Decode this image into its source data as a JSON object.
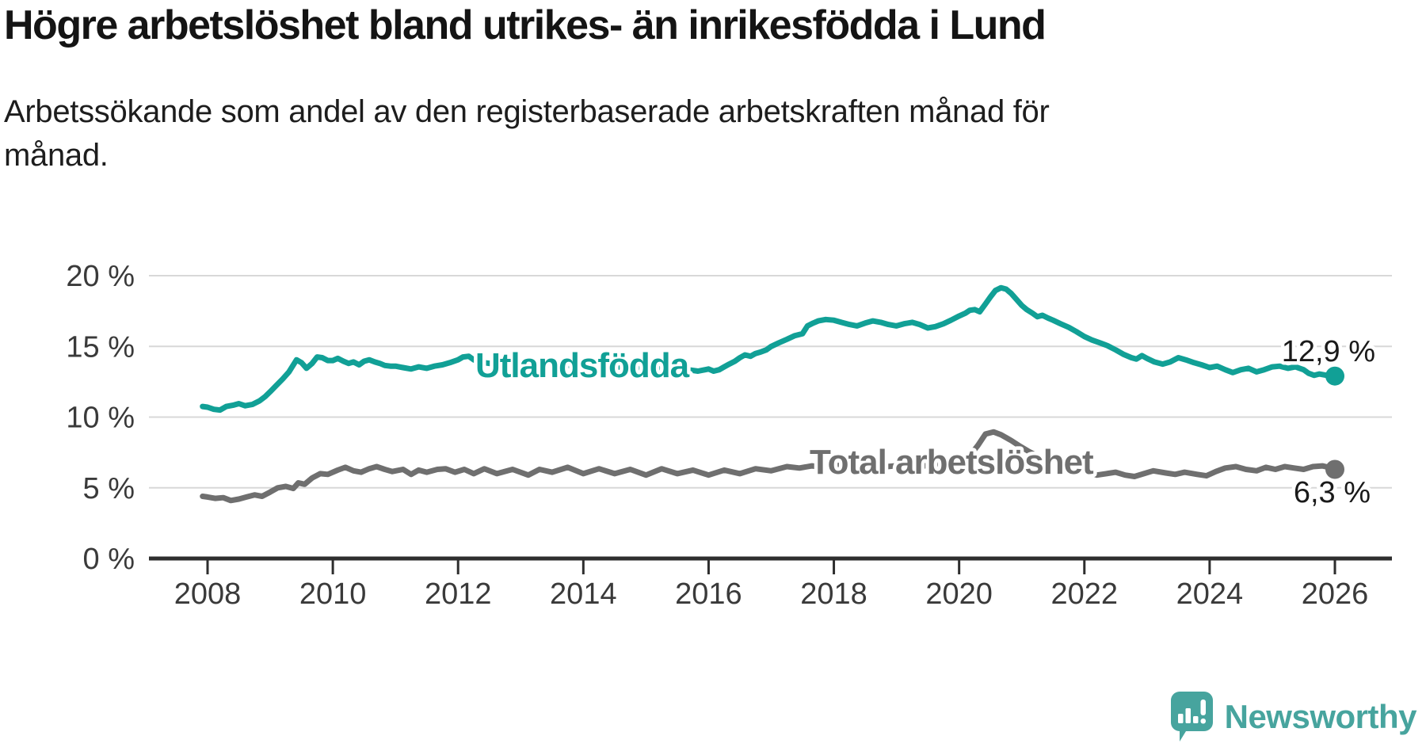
{
  "chart_data": {
    "type": "line",
    "title": "Högre arbetslöshet bland utrikes- än inrikesfödda i Lund",
    "subtitle": "Arbetssökande som andel av den registerbaserade arbetskraften månad för månad.",
    "unit": "%",
    "grid": true,
    "legend": "inline-labels",
    "x_axis": {
      "tick_values": [
        2008,
        2010,
        2012,
        2014,
        2016,
        2018,
        2020,
        2022,
        2024,
        2026
      ],
      "tick_labels": [
        "2008",
        "2010",
        "2012",
        "2014",
        "2016",
        "2018",
        "2020",
        "2022",
        "2024",
        "2026"
      ],
      "range": [
        2007.1,
        2026.9
      ]
    },
    "y_axis": {
      "tick_values": [
        0,
        5,
        10,
        15,
        20
      ],
      "tick_labels": [
        "0 %",
        "5 %",
        "10 %",
        "15 %",
        "20 %"
      ],
      "range": [
        0,
        21
      ]
    },
    "series": [
      {
        "id": "utlandsfodda",
        "name": "Utlandsfödda",
        "color": "#11A096",
        "end_label": "12,9 %",
        "end_value": 12.9,
        "points": [
          [
            2007.92,
            10.75
          ],
          [
            2008.0,
            10.7
          ],
          [
            2008.1,
            10.55
          ],
          [
            2008.2,
            10.5
          ],
          [
            2008.3,
            10.75
          ],
          [
            2008.42,
            10.85
          ],
          [
            2008.5,
            10.95
          ],
          [
            2008.6,
            10.8
          ],
          [
            2008.72,
            10.9
          ],
          [
            2008.83,
            11.15
          ],
          [
            2008.92,
            11.45
          ],
          [
            2009.0,
            11.8
          ],
          [
            2009.1,
            12.25
          ],
          [
            2009.2,
            12.7
          ],
          [
            2009.3,
            13.2
          ],
          [
            2009.42,
            14.05
          ],
          [
            2009.5,
            13.85
          ],
          [
            2009.58,
            13.45
          ],
          [
            2009.67,
            13.8
          ],
          [
            2009.75,
            14.25
          ],
          [
            2009.83,
            14.2
          ],
          [
            2009.92,
            14.0
          ],
          [
            2010.0,
            14.0
          ],
          [
            2010.08,
            14.15
          ],
          [
            2010.17,
            13.95
          ],
          [
            2010.25,
            13.8
          ],
          [
            2010.33,
            13.9
          ],
          [
            2010.42,
            13.7
          ],
          [
            2010.5,
            13.95
          ],
          [
            2010.58,
            14.05
          ],
          [
            2010.67,
            13.9
          ],
          [
            2010.75,
            13.8
          ],
          [
            2010.83,
            13.65
          ],
          [
            2010.92,
            13.6
          ],
          [
            2011.0,
            13.6
          ],
          [
            2011.12,
            13.5
          ],
          [
            2011.25,
            13.4
          ],
          [
            2011.37,
            13.55
          ],
          [
            2011.5,
            13.45
          ],
          [
            2011.62,
            13.6
          ],
          [
            2011.75,
            13.7
          ],
          [
            2011.87,
            13.85
          ],
          [
            2012.0,
            14.05
          ],
          [
            2012.08,
            14.25
          ],
          [
            2012.17,
            14.3
          ],
          [
            2012.25,
            14.05
          ],
          [
            2012.33,
            13.9
          ],
          [
            2012.5,
            13.8
          ],
          [
            2012.67,
            13.95
          ],
          [
            2012.83,
            13.85
          ],
          [
            2013.0,
            13.9
          ],
          [
            2013.17,
            13.75
          ],
          [
            2013.33,
            13.85
          ],
          [
            2013.5,
            13.65
          ],
          [
            2013.67,
            13.75
          ],
          [
            2013.83,
            13.6
          ],
          [
            2014.0,
            13.65
          ],
          [
            2014.17,
            13.55
          ],
          [
            2014.33,
            13.6
          ],
          [
            2014.5,
            13.5
          ],
          [
            2014.67,
            13.6
          ],
          [
            2014.83,
            13.45
          ],
          [
            2015.0,
            13.5
          ],
          [
            2015.17,
            13.4
          ],
          [
            2015.33,
            13.45
          ],
          [
            2015.5,
            13.55
          ],
          [
            2015.67,
            13.35
          ],
          [
            2015.83,
            13.25
          ],
          [
            2016.0,
            13.4
          ],
          [
            2016.08,
            13.25
          ],
          [
            2016.17,
            13.35
          ],
          [
            2016.25,
            13.55
          ],
          [
            2016.33,
            13.75
          ],
          [
            2016.42,
            13.95
          ],
          [
            2016.5,
            14.2
          ],
          [
            2016.58,
            14.4
          ],
          [
            2016.67,
            14.3
          ],
          [
            2016.75,
            14.5
          ],
          [
            2016.83,
            14.6
          ],
          [
            2016.92,
            14.75
          ],
          [
            2017.0,
            15.0
          ],
          [
            2017.12,
            15.25
          ],
          [
            2017.25,
            15.5
          ],
          [
            2017.37,
            15.75
          ],
          [
            2017.5,
            15.9
          ],
          [
            2017.58,
            16.45
          ],
          [
            2017.67,
            16.65
          ],
          [
            2017.75,
            16.8
          ],
          [
            2017.87,
            16.9
          ],
          [
            2018.0,
            16.85
          ],
          [
            2018.12,
            16.7
          ],
          [
            2018.25,
            16.55
          ],
          [
            2018.37,
            16.45
          ],
          [
            2018.5,
            16.65
          ],
          [
            2018.62,
            16.8
          ],
          [
            2018.75,
            16.7
          ],
          [
            2018.87,
            16.55
          ],
          [
            2019.0,
            16.45
          ],
          [
            2019.12,
            16.6
          ],
          [
            2019.25,
            16.7
          ],
          [
            2019.37,
            16.55
          ],
          [
            2019.5,
            16.3
          ],
          [
            2019.62,
            16.4
          ],
          [
            2019.75,
            16.6
          ],
          [
            2019.87,
            16.85
          ],
          [
            2020.0,
            17.15
          ],
          [
            2020.1,
            17.35
          ],
          [
            2020.17,
            17.55
          ],
          [
            2020.25,
            17.6
          ],
          [
            2020.33,
            17.45
          ],
          [
            2020.42,
            18.0
          ],
          [
            2020.5,
            18.5
          ],
          [
            2020.58,
            18.95
          ],
          [
            2020.67,
            19.15
          ],
          [
            2020.75,
            19.05
          ],
          [
            2020.83,
            18.75
          ],
          [
            2020.92,
            18.3
          ],
          [
            2021.0,
            17.9
          ],
          [
            2021.08,
            17.6
          ],
          [
            2021.17,
            17.35
          ],
          [
            2021.25,
            17.1
          ],
          [
            2021.33,
            17.2
          ],
          [
            2021.42,
            17.0
          ],
          [
            2021.5,
            16.85
          ],
          [
            2021.62,
            16.6
          ],
          [
            2021.75,
            16.35
          ],
          [
            2021.87,
            16.05
          ],
          [
            2022.0,
            15.7
          ],
          [
            2022.12,
            15.45
          ],
          [
            2022.25,
            15.25
          ],
          [
            2022.37,
            15.05
          ],
          [
            2022.5,
            14.75
          ],
          [
            2022.62,
            14.45
          ],
          [
            2022.75,
            14.2
          ],
          [
            2022.83,
            14.1
          ],
          [
            2022.92,
            14.35
          ],
          [
            2023.0,
            14.15
          ],
          [
            2023.12,
            13.9
          ],
          [
            2023.25,
            13.75
          ],
          [
            2023.37,
            13.9
          ],
          [
            2023.5,
            14.2
          ],
          [
            2023.62,
            14.05
          ],
          [
            2023.75,
            13.85
          ],
          [
            2023.87,
            13.7
          ],
          [
            2024.0,
            13.5
          ],
          [
            2024.12,
            13.6
          ],
          [
            2024.25,
            13.35
          ],
          [
            2024.37,
            13.15
          ],
          [
            2024.5,
            13.35
          ],
          [
            2024.62,
            13.45
          ],
          [
            2024.75,
            13.2
          ],
          [
            2024.87,
            13.35
          ],
          [
            2025.0,
            13.55
          ],
          [
            2025.12,
            13.6
          ],
          [
            2025.25,
            13.45
          ],
          [
            2025.37,
            13.55
          ],
          [
            2025.5,
            13.35
          ],
          [
            2025.58,
            13.1
          ],
          [
            2025.67,
            12.95
          ],
          [
            2025.75,
            13.05
          ],
          [
            2025.87,
            12.95
          ],
          [
            2026.0,
            12.9
          ]
        ]
      },
      {
        "id": "total",
        "name": "Total arbetslöshet",
        "color": "#6F6F6F",
        "end_label": "6,3 %",
        "end_value": 6.3,
        "points": [
          [
            2007.92,
            4.4
          ],
          [
            2008.0,
            4.35
          ],
          [
            2008.12,
            4.25
          ],
          [
            2008.25,
            4.3
          ],
          [
            2008.37,
            4.1
          ],
          [
            2008.5,
            4.2
          ],
          [
            2008.62,
            4.35
          ],
          [
            2008.75,
            4.5
          ],
          [
            2008.87,
            4.4
          ],
          [
            2009.0,
            4.7
          ],
          [
            2009.12,
            5.0
          ],
          [
            2009.25,
            5.1
          ],
          [
            2009.37,
            4.95
          ],
          [
            2009.45,
            5.35
          ],
          [
            2009.55,
            5.25
          ],
          [
            2009.67,
            5.7
          ],
          [
            2009.8,
            6.0
          ],
          [
            2009.92,
            5.95
          ],
          [
            2010.08,
            6.25
          ],
          [
            2010.2,
            6.45
          ],
          [
            2010.33,
            6.2
          ],
          [
            2010.45,
            6.1
          ],
          [
            2010.58,
            6.35
          ],
          [
            2010.7,
            6.5
          ],
          [
            2010.83,
            6.3
          ],
          [
            2010.95,
            6.15
          ],
          [
            2011.12,
            6.3
          ],
          [
            2011.25,
            5.95
          ],
          [
            2011.37,
            6.25
          ],
          [
            2011.5,
            6.1
          ],
          [
            2011.67,
            6.3
          ],
          [
            2011.8,
            6.35
          ],
          [
            2011.95,
            6.1
          ],
          [
            2012.1,
            6.3
          ],
          [
            2012.25,
            6.0
          ],
          [
            2012.42,
            6.35
          ],
          [
            2012.62,
            6.0
          ],
          [
            2012.87,
            6.3
          ],
          [
            2013.12,
            5.9
          ],
          [
            2013.3,
            6.3
          ],
          [
            2013.5,
            6.1
          ],
          [
            2013.75,
            6.45
          ],
          [
            2014.0,
            6.0
          ],
          [
            2014.25,
            6.35
          ],
          [
            2014.5,
            6.0
          ],
          [
            2014.75,
            6.3
          ],
          [
            2015.0,
            5.9
          ],
          [
            2015.25,
            6.35
          ],
          [
            2015.5,
            6.0
          ],
          [
            2015.75,
            6.25
          ],
          [
            2016.0,
            5.9
          ],
          [
            2016.25,
            6.25
          ],
          [
            2016.5,
            6.0
          ],
          [
            2016.75,
            6.35
          ],
          [
            2017.0,
            6.2
          ],
          [
            2017.25,
            6.5
          ],
          [
            2017.45,
            6.4
          ],
          [
            2017.65,
            6.55
          ],
          [
            2017.85,
            6.45
          ],
          [
            2018.1,
            6.6
          ],
          [
            2018.35,
            6.45
          ],
          [
            2018.6,
            6.65
          ],
          [
            2018.85,
            6.5
          ],
          [
            2019.1,
            6.6
          ],
          [
            2019.35,
            6.45
          ],
          [
            2019.6,
            6.7
          ],
          [
            2019.85,
            6.65
          ],
          [
            2020.0,
            6.8
          ],
          [
            2020.15,
            7.15
          ],
          [
            2020.3,
            8.0
          ],
          [
            2020.42,
            8.8
          ],
          [
            2020.55,
            8.95
          ],
          [
            2020.67,
            8.75
          ],
          [
            2020.83,
            8.35
          ],
          [
            2020.95,
            8.0
          ],
          [
            2021.1,
            7.6
          ],
          [
            2021.25,
            7.25
          ],
          [
            2021.42,
            6.95
          ],
          [
            2021.58,
            6.75
          ],
          [
            2021.75,
            6.55
          ],
          [
            2021.9,
            6.4
          ],
          [
            2022.05,
            6.15
          ],
          [
            2022.2,
            5.9
          ],
          [
            2022.35,
            6.0
          ],
          [
            2022.5,
            6.1
          ],
          [
            2022.65,
            5.9
          ],
          [
            2022.8,
            5.8
          ],
          [
            2022.95,
            6.0
          ],
          [
            2023.1,
            6.2
          ],
          [
            2023.3,
            6.05
          ],
          [
            2023.45,
            5.95
          ],
          [
            2023.6,
            6.1
          ],
          [
            2023.8,
            5.95
          ],
          [
            2023.95,
            5.85
          ],
          [
            2024.1,
            6.15
          ],
          [
            2024.25,
            6.4
          ],
          [
            2024.42,
            6.5
          ],
          [
            2024.58,
            6.3
          ],
          [
            2024.75,
            6.2
          ],
          [
            2024.9,
            6.45
          ],
          [
            2025.05,
            6.3
          ],
          [
            2025.2,
            6.5
          ],
          [
            2025.35,
            6.4
          ],
          [
            2025.5,
            6.3
          ],
          [
            2025.65,
            6.5
          ],
          [
            2025.8,
            6.55
          ],
          [
            2025.9,
            6.45
          ],
          [
            2026.0,
            6.3
          ]
        ]
      }
    ]
  },
  "branding": {
    "logo_text": "Newsworthy",
    "logo_color": "#47A49E"
  }
}
